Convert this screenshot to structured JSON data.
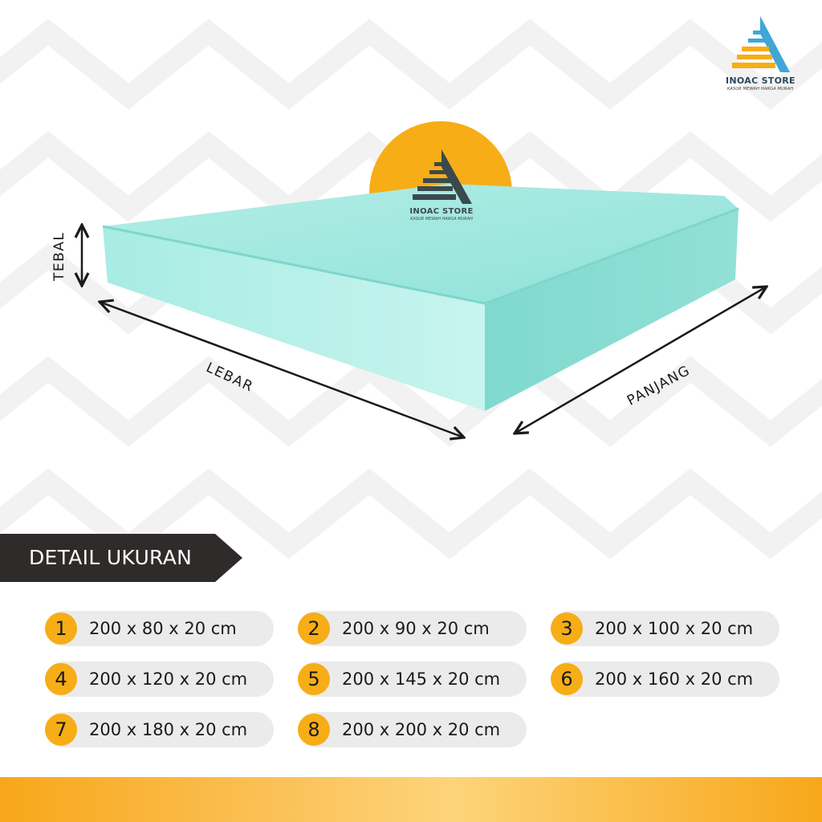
{
  "brand": {
    "name": "INOAC STORE",
    "tagline": "KASUR MEWAH HARGA MURAH",
    "colors": {
      "orange": "#f7ad16",
      "dark": "#2e2b2a",
      "mattress": "#9ee6de",
      "logo_blue": "#3fa6d8"
    }
  },
  "diagram": {
    "labels": {
      "tebal": "TEBAL",
      "lebar": "LEBAR",
      "panjang": "PANJANG"
    },
    "icons": [
      "double-arrow-icon",
      "double-arrow-icon",
      "double-arrow-icon"
    ]
  },
  "section": {
    "title": "DETAIL UKURAN"
  },
  "sizes": [
    {
      "num": "1",
      "label": "200 x 80 x 20 cm"
    },
    {
      "num": "2",
      "label": "200 x 90 x 20 cm"
    },
    {
      "num": "3",
      "label": "200 x 100 x 20 cm"
    },
    {
      "num": "4",
      "label": "200 x 120 x 20 cm"
    },
    {
      "num": "5",
      "label": "200 x 145 x 20 cm"
    },
    {
      "num": "6",
      "label": "200 x 160 x 20 cm"
    },
    {
      "num": "7",
      "label": "200 x 180 x 20 cm"
    },
    {
      "num": "8",
      "label": "200 x 200 x 20 cm"
    }
  ]
}
